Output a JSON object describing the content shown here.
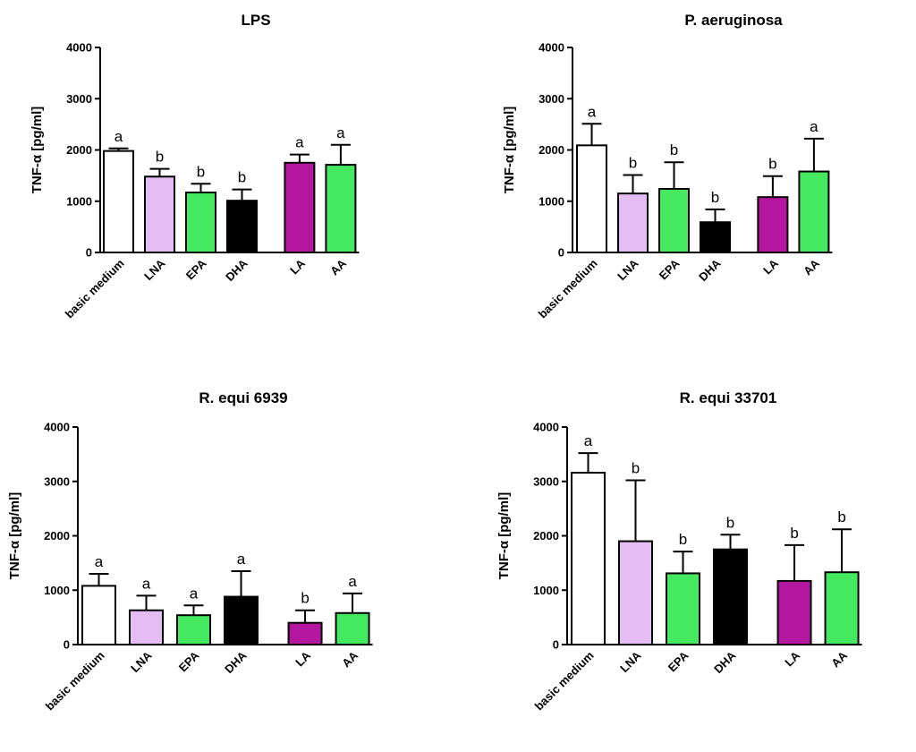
{
  "chart_data": [
    {
      "type": "bar",
      "title": "LPS",
      "ylabel": "TNF-α [pg/ml]",
      "ylim": [
        0,
        4000
      ],
      "yticks": [
        0,
        1000,
        2000,
        3000,
        4000
      ],
      "categories": [
        "basic medium",
        "LNA",
        "EPA",
        "DHA",
        "LA",
        "AA"
      ],
      "values": [
        1980,
        1480,
        1170,
        1010,
        1750,
        1710
      ],
      "errors": [
        50,
        150,
        170,
        220,
        160,
        390
      ],
      "significance": [
        "a",
        "b",
        "b",
        "b",
        "a",
        "a"
      ]
    },
    {
      "type": "bar",
      "title": "P. aeruginosa",
      "ylabel": "TNF-α [pg/ml]",
      "ylim": [
        0,
        4000
      ],
      "yticks": [
        0,
        1000,
        2000,
        3000,
        4000
      ],
      "categories": [
        "basic medium",
        "LNA",
        "EPA",
        "DHA",
        "LA",
        "AA"
      ],
      "values": [
        2090,
        1150,
        1240,
        590,
        1080,
        1580
      ],
      "errors": [
        420,
        360,
        520,
        250,
        410,
        640
      ],
      "significance": [
        "a",
        "b",
        "b",
        "b",
        "b",
        "a"
      ]
    },
    {
      "type": "bar",
      "title": "R. equi 6939",
      "ylabel": "TNF-α [pg/ml]",
      "ylim": [
        0,
        4000
      ],
      "yticks": [
        0,
        1000,
        2000,
        3000,
        4000
      ],
      "categories": [
        "basic medium",
        "LNA",
        "EPA",
        "DHA",
        "LA",
        "AA"
      ],
      "values": [
        1080,
        630,
        540,
        880,
        400,
        580
      ],
      "errors": [
        220,
        270,
        180,
        470,
        230,
        360
      ],
      "significance": [
        "a",
        "a",
        "a",
        "a",
        "b",
        "a"
      ]
    },
    {
      "type": "bar",
      "title": "R. equi 33701",
      "ylabel": "TNF-α [pg/ml]",
      "ylim": [
        0,
        4000
      ],
      "yticks": [
        0,
        1000,
        2000,
        3000,
        4000
      ],
      "categories": [
        "basic medium",
        "LNA",
        "EPA",
        "DHA",
        "LA",
        "AA"
      ],
      "values": [
        3160,
        1900,
        1310,
        1750,
        1170,
        1330
      ],
      "errors": [
        360,
        1120,
        400,
        270,
        660,
        790
      ],
      "significance": [
        "a",
        "b",
        "b",
        "b",
        "b",
        "b"
      ]
    }
  ],
  "colors": {
    "basic medium": "#ffffff",
    "LNA": "#e4bdf5",
    "EPA": "#45e960",
    "DHA": "#000000",
    "LA": "#b5169f",
    "AA": "#45e960"
  }
}
